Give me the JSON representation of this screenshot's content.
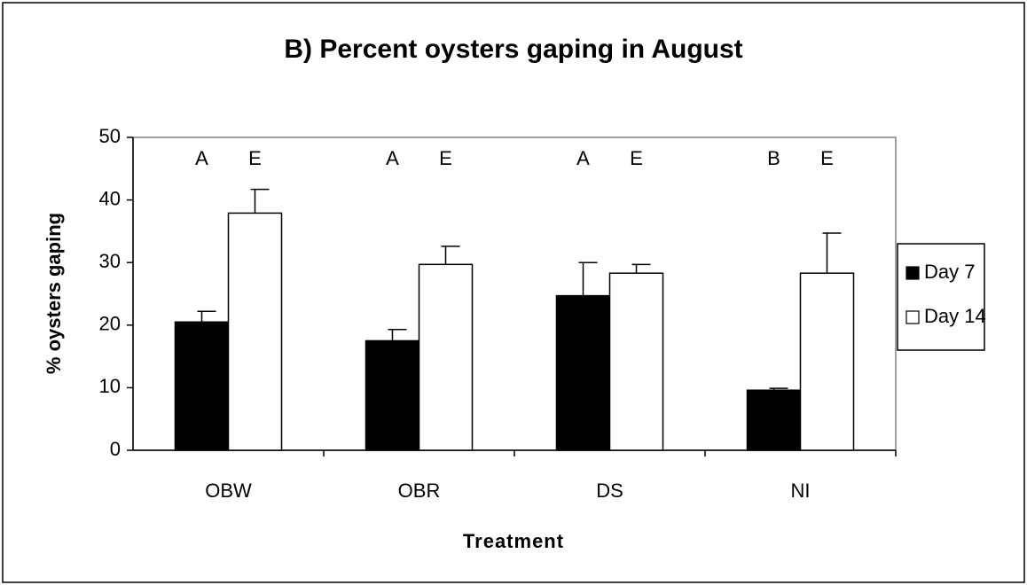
{
  "chart_data": {
    "type": "bar",
    "title": "B) Percent oysters gaping in August",
    "x_label": "Treatment",
    "y_label": "% oysters gaping",
    "categories": [
      "OBW",
      "OBR",
      "DS",
      "NI"
    ],
    "series": [
      {
        "name": "Day 7",
        "color": "#000000",
        "values": [
          20.5,
          17.5,
          24.7,
          9.6
        ],
        "errors": [
          1.7,
          1.8,
          5.3,
          0.3
        ],
        "letters": [
          "A",
          "A",
          "A",
          "B"
        ]
      },
      {
        "name": "Day 14",
        "color": "#ffffff",
        "values": [
          37.9,
          29.7,
          28.3,
          28.3
        ],
        "errors": [
          3.8,
          2.9,
          1.4,
          6.4
        ],
        "letters": [
          "E",
          "E",
          "E",
          "E"
        ]
      }
    ],
    "ylim": [
      0,
      50
    ],
    "yticks": [
      0,
      10,
      20,
      30,
      40,
      50
    ],
    "legend": "right"
  }
}
